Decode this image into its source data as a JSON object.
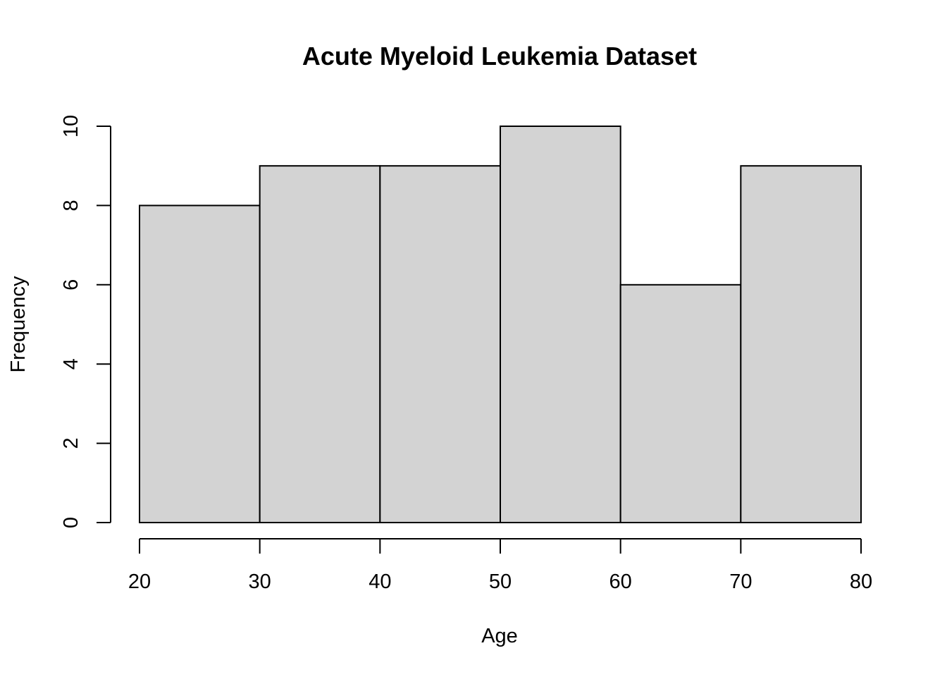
{
  "chart_data": {
    "type": "bar",
    "title": "Acute Myeloid Leukemia Dataset",
    "xlabel": "Age",
    "ylabel": "Frequency",
    "bins": [
      {
        "from": 20,
        "to": 30,
        "value": 8
      },
      {
        "from": 30,
        "to": 40,
        "value": 9
      },
      {
        "from": 40,
        "to": 50,
        "value": 9
      },
      {
        "from": 50,
        "to": 60,
        "value": 10
      },
      {
        "from": 60,
        "to": 70,
        "value": 6
      },
      {
        "from": 70,
        "to": 80,
        "value": 9
      }
    ],
    "xlim": [
      20,
      80
    ],
    "ylim": [
      0,
      10
    ],
    "x_ticks": [
      20,
      30,
      40,
      50,
      60,
      70,
      80
    ],
    "y_ticks": [
      0,
      2,
      4,
      6,
      8,
      10
    ],
    "grid": false,
    "bar_color": "#d3d3d3",
    "edge_color": "#000000"
  }
}
